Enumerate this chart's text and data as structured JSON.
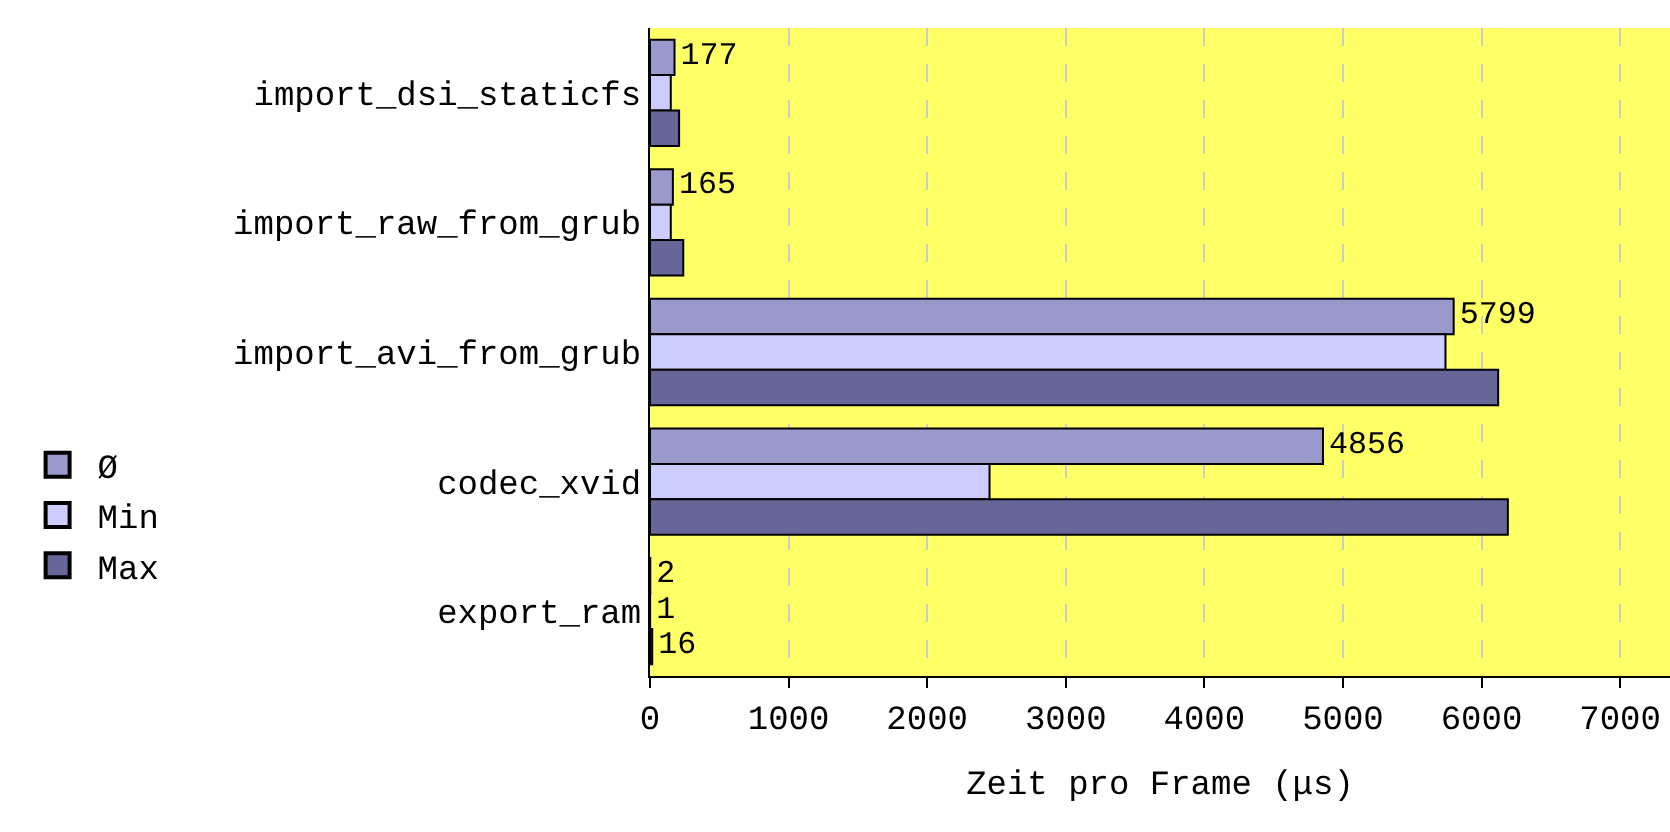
{
  "chart_data": {
    "type": "bar",
    "orientation": "horizontal",
    "xlabel": "Zeit pro Frame (μs)",
    "categories": [
      "import_dsi_staticfs",
      "import_raw_from_grub",
      "import_avi_from_grub",
      "codec_xvid",
      "export_ram"
    ],
    "series": [
      {
        "name": "Ø",
        "color": "#9999cc",
        "values": [
          177,
          165,
          5799,
          4856,
          2
        ],
        "value_labels": [
          "177",
          "165",
          "5799",
          "4856",
          "2"
        ]
      },
      {
        "name": "Min",
        "color": "#ccccff",
        "values": [
          150,
          150,
          5740,
          2450,
          1
        ],
        "value_labels": [
          null,
          null,
          null,
          null,
          "1"
        ]
      },
      {
        "name": "Max",
        "color": "#666699",
        "values": [
          210,
          240,
          6120,
          6190,
          16
        ],
        "value_labels": [
          null,
          null,
          null,
          null,
          "16"
        ]
      }
    ],
    "xlim": [
      0,
      7360
    ],
    "xticks": [
      0,
      1000,
      2000,
      3000,
      4000,
      5000,
      6000,
      7000
    ],
    "grid": "x",
    "legend": "bottom left"
  }
}
